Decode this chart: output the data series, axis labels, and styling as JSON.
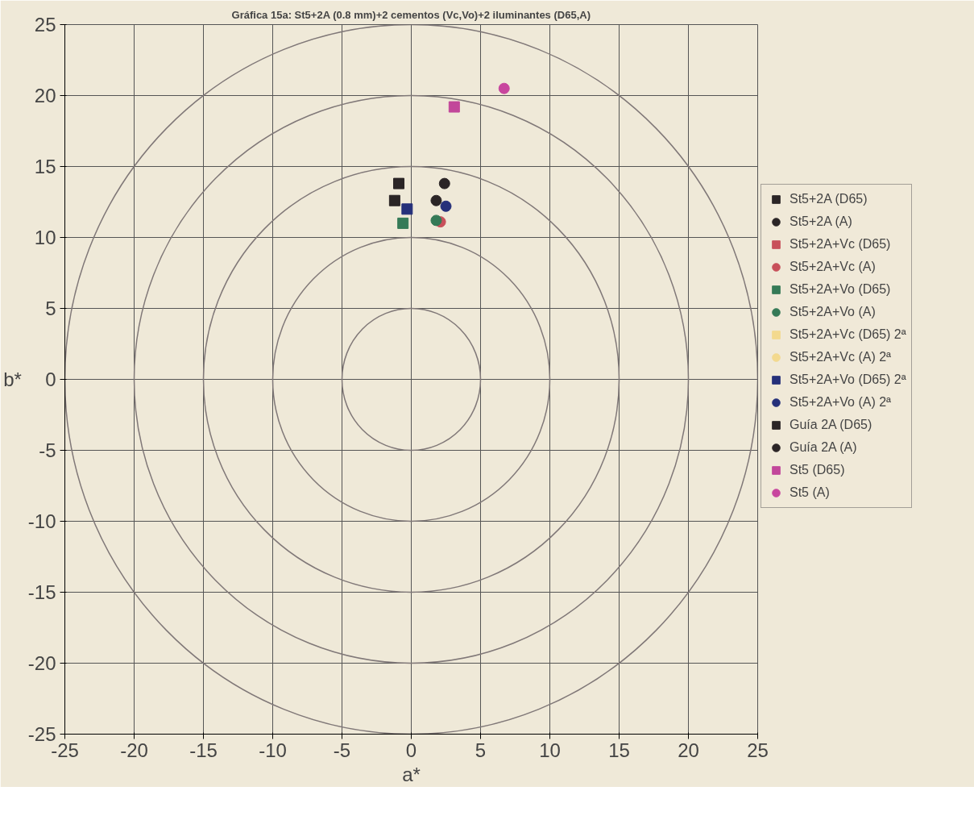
{
  "chart_data": {
    "type": "scatter",
    "title": "Gráfica 15a: St5+2A (0.8 mm)+2 cementos (Vc,Vo)+2 iluminantes (D65,A)",
    "xlabel": "a*",
    "ylabel": "b*",
    "xlim": [
      -25,
      25
    ],
    "ylim": [
      -25,
      25
    ],
    "xticks": [
      -25,
      -20,
      -15,
      -10,
      -5,
      0,
      5,
      10,
      15,
      20,
      25
    ],
    "yticks": [
      -25,
      -20,
      -15,
      -10,
      -5,
      0,
      5,
      10,
      15,
      20,
      25
    ],
    "grid": true,
    "legend": "right",
    "series": [
      {
        "name": "St5+2A (D65)",
        "color": "#2b2526",
        "marker": "square",
        "x": [
          -0.9
        ],
        "values": [
          13.8
        ]
      },
      {
        "name": "St5+2A (A)",
        "color": "#2b2526",
        "marker": "circle",
        "x": [
          2.4
        ],
        "values": [
          13.8
        ]
      },
      {
        "name": "St5+2A+Vc (D65)",
        "color": "#c8505a",
        "marker": "square",
        "x": [
          null
        ],
        "values": [
          null
        ]
      },
      {
        "name": "St5+2A+Vc (A)",
        "color": "#c8505a",
        "marker": "circle",
        "x": [
          2.1
        ],
        "values": [
          11.1
        ]
      },
      {
        "name": "St5+2A+Vo (D65)",
        "color": "#357a57",
        "marker": "square",
        "x": [
          -0.6
        ],
        "values": [
          11.0
        ]
      },
      {
        "name": "St5+2A+Vo (A)",
        "color": "#357a57",
        "marker": "circle",
        "x": [
          1.8
        ],
        "values": [
          11.2
        ]
      },
      {
        "name": "St5+2A+Vc (D65) 2ª",
        "color": "#f3d98e",
        "marker": "square",
        "x": [
          null
        ],
        "values": [
          null
        ]
      },
      {
        "name": "St5+2A+Vc (A) 2ª",
        "color": "#f3d98e",
        "marker": "circle",
        "x": [
          null
        ],
        "values": [
          null
        ]
      },
      {
        "name": "St5+2A+Vo (D65) 2ª",
        "color": "#25307a",
        "marker": "square",
        "x": [
          -0.3
        ],
        "values": [
          12.0
        ]
      },
      {
        "name": "St5+2A+Vo (A) 2ª",
        "color": "#25307a",
        "marker": "circle",
        "x": [
          2.5
        ],
        "values": [
          12.2
        ]
      },
      {
        "name": "Guía 2A (D65)",
        "color": "#2b2526",
        "marker": "square",
        "x": [
          -1.2
        ],
        "values": [
          12.6
        ]
      },
      {
        "name": "Guía 2A (A)",
        "color": "#2b2526",
        "marker": "circle",
        "x": [
          1.8
        ],
        "values": [
          12.6
        ]
      },
      {
        "name": "St5 (D65)",
        "color": "#c2479a",
        "marker": "square",
        "x": [
          3.1
        ],
        "values": [
          19.2
        ]
      },
      {
        "name": "St5 (A)",
        "color": "#c8469e",
        "marker": "circle",
        "x": [
          6.7
        ],
        "values": [
          20.5
        ]
      }
    ]
  }
}
